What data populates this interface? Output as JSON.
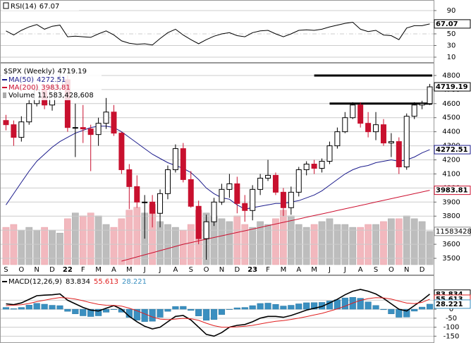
{
  "chart_data": [
    {
      "type": "line",
      "series": [
        {
          "name": "RSI(14)",
          "color": "#000000",
          "values": [
            55,
            48,
            56,
            62,
            66,
            58,
            63,
            65,
            45,
            46,
            45,
            44,
            50,
            55,
            48,
            38,
            34,
            32,
            33,
            31,
            42,
            52,
            58,
            48,
            40,
            33,
            40,
            46,
            50,
            52,
            47,
            45,
            52,
            55,
            56,
            50,
            45,
            50,
            56,
            57,
            56,
            58,
            62,
            65,
            68,
            70,
            58,
            54,
            56,
            48,
            47,
            40,
            60,
            64,
            64,
            67.07
          ]
        }
      ],
      "ylim": [
        1.5,
        104.5
      ],
      "yticks": [
        90,
        70,
        50,
        30,
        10
      ],
      "grid": true
    },
    {
      "type": "candlestick",
      "title": "$SPX (Weekly)",
      "categories": [
        "S",
        null,
        "O",
        null,
        "N",
        null,
        "D",
        null,
        "22",
        null,
        "F",
        null,
        "M",
        null,
        "A",
        null,
        "M",
        null,
        "J",
        null,
        "J",
        null,
        "A",
        null,
        "S",
        null,
        "O",
        null,
        "N",
        null,
        "D",
        null,
        "23",
        null,
        "F",
        null,
        "M",
        null,
        "A",
        null,
        "M",
        null,
        "J",
        null,
        "J",
        null,
        "A",
        null,
        "S",
        null,
        "O",
        null,
        "N",
        null,
        "D",
        null
      ],
      "open": [
        4480,
        4450,
        4360,
        4470,
        4600,
        4700,
        4590,
        4710,
        4770,
        4430,
        4430,
        4420,
        4380,
        4460,
        4540,
        4390,
        4130,
        4010,
        3900,
        3900,
        3820,
        3960,
        4130,
        4280,
        4060,
        3870,
        3640,
        3760,
        3900,
        3990,
        4030,
        3890,
        3840,
        3990,
        4070,
        4090,
        3970,
        3860,
        3970,
        4130,
        4170,
        4140,
        4190,
        4300,
        4400,
        4500,
        4590,
        4460,
        4400,
        4450,
        4320,
        4330,
        4150,
        4510,
        4590,
        4600
      ],
      "high": [
        4520,
        4480,
        4510,
        4630,
        4740,
        4720,
        4740,
        4810,
        4800,
        4600,
        4590,
        4450,
        4500,
        4640,
        4590,
        4400,
        4170,
        4090,
        3950,
        3950,
        3990,
        4160,
        4310,
        4320,
        4120,
        3910,
        3810,
        3930,
        4030,
        4100,
        4080,
        3950,
        4020,
        4100,
        4200,
        4110,
        4000,
        4010,
        4150,
        4190,
        4200,
        4210,
        4330,
        4430,
        4540,
        4610,
        4610,
        4540,
        4540,
        4490,
        4390,
        4360,
        4530,
        4610,
        4620,
        4740
      ],
      "low": [
        4410,
        4300,
        4330,
        4450,
        4580,
        4560,
        4550,
        4680,
        4400,
        4220,
        4320,
        4120,
        4300,
        4420,
        4370,
        4100,
        3850,
        3860,
        3640,
        3720,
        3720,
        3920,
        4110,
        4040,
        3860,
        3600,
        3490,
        3730,
        3880,
        3930,
        3820,
        3760,
        3770,
        3950,
        4050,
        3950,
        3800,
        3810,
        3940,
        4090,
        4100,
        4110,
        4170,
        4280,
        4390,
        4490,
        4430,
        4360,
        4340,
        4300,
        4220,
        4100,
        4130,
        4490,
        4560,
        4590
      ],
      "close": [
        4450,
        4360,
        4470,
        4600,
        4700,
        4590,
        4710,
        4770,
        4430,
        4430,
        4420,
        4380,
        4460,
        4540,
        4390,
        4130,
        4010,
        3900,
        3900,
        3820,
        3960,
        4130,
        4280,
        4060,
        3870,
        3640,
        3760,
        3900,
        3990,
        4030,
        3890,
        3840,
        3990,
        4070,
        4090,
        3970,
        3860,
        3970,
        4130,
        4170,
        4140,
        4190,
        4300,
        4400,
        4500,
        4590,
        4460,
        4400,
        4450,
        4320,
        4330,
        4150,
        4510,
        4590,
        4600,
        4719.19
      ],
      "series": [
        {
          "name": "MA(50)",
          "color": "#1c1c8c",
          "values": [
            3880,
            3960,
            4040,
            4120,
            4190,
            4240,
            4290,
            4330,
            4360,
            4390,
            4410,
            4430,
            4440,
            4440,
            4430,
            4400,
            4360,
            4320,
            4280,
            4240,
            4210,
            4180,
            4160,
            4140,
            4110,
            4060,
            4000,
            3960,
            3930,
            3920,
            3880,
            3850,
            3860,
            3870,
            3880,
            3890,
            3890,
            3900,
            3910,
            3930,
            3950,
            3980,
            4020,
            4060,
            4100,
            4130,
            4150,
            4160,
            4180,
            4190,
            4200,
            4190,
            4200,
            4220,
            4250,
            4272.51
          ]
        },
        {
          "name": "MA(200)",
          "color": "#cc1030",
          "values": [
            null,
            null,
            null,
            null,
            null,
            null,
            null,
            null,
            null,
            null,
            null,
            null,
            null,
            null,
            null,
            3480,
            3495,
            3510,
            3525,
            3540,
            3555,
            3570,
            3585,
            3600,
            3612,
            3624,
            3636,
            3648,
            3660,
            3672,
            3684,
            3696,
            3708,
            3720,
            3732,
            3744,
            3756,
            3768,
            3780,
            3792,
            3804,
            3816,
            3828,
            3840,
            3852,
            3864,
            3876,
            3888,
            3900,
            3912,
            3924,
            3936,
            3948,
            3960,
            3972,
            3983.81
          ]
        }
      ],
      "volume": {
        "name": "Volume",
        "value_label": "11,583,428,608",
        "ylim": [
          0,
          70000000000
        ],
        "values": [
          13000000000,
          14000000000,
          12000000000,
          13000000000,
          12000000000,
          13000000000,
          12000000000,
          11000000000,
          16000000000,
          18000000000,
          17000000000,
          18000000000,
          17000000000,
          14000000000,
          13000000000,
          16000000000,
          19000000000,
          20000000000,
          18000000000,
          21000000000,
          15000000000,
          14000000000,
          13000000000,
          12000000000,
          14000000000,
          19000000000,
          18000000000,
          17000000000,
          16000000000,
          15000000000,
          17000000000,
          14000000000,
          13000000000,
          15000000000,
          14000000000,
          16000000000,
          19000000000,
          17000000000,
          14000000000,
          13000000000,
          14000000000,
          15000000000,
          16000000000,
          14000000000,
          14000000000,
          13000000000,
          13000000000,
          14000000000,
          14000000000,
          15000000000,
          16000000000,
          16000000000,
          17000000000,
          16000000000,
          15000000000,
          11583428608
        ]
      },
      "hlines": [
        {
          "value": 4800,
          "from": 40
        },
        {
          "value": 4600,
          "from": 42
        }
      ],
      "ylim": [
        3455,
        4885
      ],
      "yticks": [
        3500,
        3600,
        3700,
        3800,
        3900,
        4000,
        4100,
        4200,
        4300,
        4400,
        4500,
        4600,
        4700,
        4800
      ],
      "grid": true
    },
    {
      "type": "macd",
      "legend_name": "MACD(12,26,9)",
      "series": [
        {
          "color": "#000000",
          "values": [
            30,
            25,
            35,
            55,
            75,
            78,
            80,
            85,
            50,
            30,
            10,
            -5,
            -10,
            5,
            20,
            0,
            -40,
            -70,
            -95,
            -110,
            -100,
            -70,
            -40,
            -35,
            -60,
            -100,
            -140,
            -150,
            -130,
            -100,
            -90,
            -85,
            -70,
            -50,
            -40,
            -40,
            -45,
            -35,
            -20,
            -5,
            5,
            15,
            35,
            55,
            80,
            100,
            110,
            100,
            85,
            60,
            30,
            0,
            -10,
            20,
            50,
            83.834
          ]
        },
        {
          "color": "#e02020",
          "values": [
            20,
            22,
            25,
            32,
            42,
            50,
            58,
            65,
            62,
            56,
            47,
            36,
            27,
            22,
            21,
            17,
            6,
            -9,
            -26,
            -43,
            -55,
            -58,
            -55,
            -51,
            -53,
            -62,
            -78,
            -92,
            -100,
            -100,
            -98,
            -95,
            -90,
            -82,
            -74,
            -67,
            -63,
            -57,
            -50,
            -41,
            -32,
            -23,
            -11,
            2,
            17,
            34,
            49,
            59,
            64,
            63,
            56,
            45,
            34,
            31,
            38,
            55.613
          ]
        },
        {
          "color": "#3a8fc0",
          "histogram": true,
          "values": [
            10,
            3,
            10,
            23,
            33,
            28,
            22,
            20,
            -12,
            -26,
            -37,
            -41,
            -37,
            -17,
            -1,
            -17,
            -46,
            -61,
            -69,
            -67,
            -45,
            -12,
            15,
            16,
            -7,
            -38,
            -62,
            -58,
            -30,
            0,
            8,
            10,
            20,
            32,
            34,
            27,
            18,
            22,
            30,
            36,
            37,
            38,
            46,
            53,
            63,
            66,
            61,
            41,
            21,
            -3,
            -26,
            -45,
            -44,
            -11,
            12,
            28.221
          ]
        }
      ],
      "ylim": [
        -188,
        181
      ],
      "yticks": [
        50,
        0,
        -50,
        -100,
        -150
      ],
      "grid": true
    }
  ]
}
